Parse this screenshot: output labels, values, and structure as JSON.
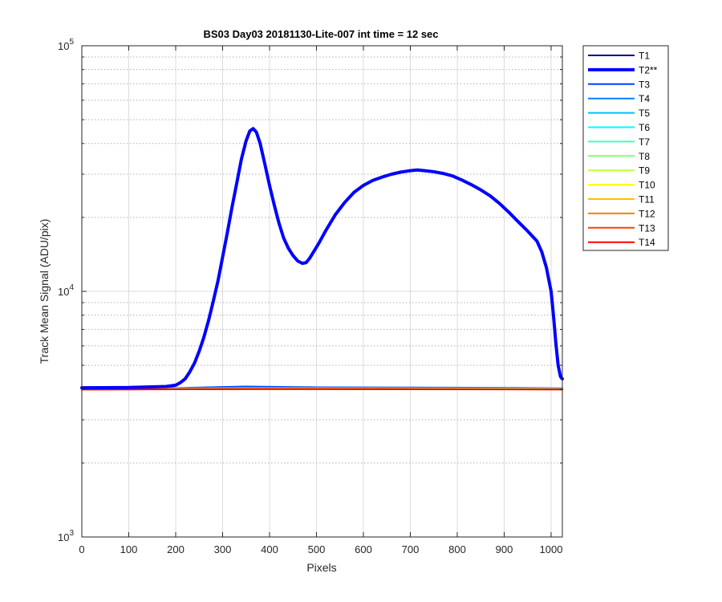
{
  "chart_data": {
    "type": "line",
    "title": "BS03 Day03 20181130-Lite-007 int time = 12 sec",
    "xlabel": "Pixels",
    "ylabel": "Track Mean Signal (ADU/pix)",
    "xlim": [
      0,
      1024
    ],
    "ylim": [
      1000,
      100000
    ],
    "yscale": "log",
    "xticks": [
      0,
      100,
      200,
      300,
      400,
      500,
      600,
      700,
      800,
      900,
      1000
    ],
    "xtick_labels": [
      "0",
      "100",
      "200",
      "300",
      "400",
      "500",
      "600",
      "700",
      "800",
      "900",
      "1000"
    ],
    "ytick_labels": [
      {
        "value": 1000,
        "base": "10",
        "exp": "3"
      },
      {
        "value": 10000,
        "base": "10",
        "exp": "4"
      },
      {
        "value": 100000,
        "base": "10",
        "exp": "5"
      }
    ],
    "grid": true,
    "legend_position": "outside-right",
    "series": [
      {
        "name": "T1",
        "color": "#00008f",
        "width": 2,
        "x": [
          0,
          200,
          350,
          500,
          700,
          900,
          1024
        ],
        "y": [
          4000,
          4020,
          4080,
          4050,
          4040,
          4030,
          4020
        ]
      },
      {
        "name": "T2**",
        "color": "#0000ff",
        "width": 4,
        "x": [
          0,
          100,
          180,
          200,
          210,
          220,
          230,
          240,
          250,
          260,
          270,
          280,
          290,
          300,
          310,
          320,
          330,
          340,
          350,
          358,
          365,
          372,
          380,
          390,
          400,
          410,
          420,
          430,
          440,
          450,
          460,
          470,
          478,
          485,
          495,
          505,
          520,
          540,
          560,
          580,
          600,
          620,
          640,
          660,
          680,
          700,
          715,
          730,
          750,
          770,
          790,
          810,
          830,
          850,
          870,
          890,
          910,
          930,
          950,
          970,
          980,
          990,
          1000,
          1005,
          1010,
          1015,
          1020,
          1024
        ],
        "y": [
          4050,
          4060,
          4100,
          4150,
          4250,
          4400,
          4700,
          5100,
          5700,
          6500,
          7600,
          9100,
          11000,
          13800,
          17300,
          22000,
          27500,
          34500,
          41000,
          45000,
          46000,
          44500,
          40000,
          33000,
          27000,
          22500,
          19000,
          16500,
          15000,
          14000,
          13300,
          13000,
          13100,
          13600,
          14600,
          15700,
          17700,
          20500,
          23000,
          25300,
          27000,
          28300,
          29200,
          30000,
          30600,
          31000,
          31200,
          31000,
          30700,
          30200,
          29500,
          28400,
          27200,
          25900,
          24500,
          22800,
          21000,
          19200,
          17600,
          16000,
          14500,
          12500,
          10000,
          8000,
          6200,
          5000,
          4500,
          4400
        ]
      },
      {
        "name": "T3",
        "color": "#0040ff",
        "width": 2,
        "x": [
          0,
          200,
          350,
          500,
          700,
          900,
          1024
        ],
        "y": [
          4020,
          4040,
          4100,
          4070,
          4060,
          4050,
          4030
        ]
      },
      {
        "name": "T4",
        "color": "#0080ff",
        "width": 2,
        "x": [
          0,
          200,
          350,
          500,
          700,
          900,
          1024
        ],
        "y": [
          4010,
          4030,
          4060,
          4050,
          4045,
          4035,
          4020
        ]
      },
      {
        "name": "T5",
        "color": "#00bfff",
        "width": 2,
        "x": [
          0,
          200,
          350,
          500,
          700,
          900,
          1024
        ],
        "y": [
          4005,
          4020,
          4040,
          4035,
          4030,
          4025,
          4015
        ]
      },
      {
        "name": "T6",
        "color": "#00ffff",
        "width": 2,
        "x": [
          0,
          200,
          350,
          500,
          700,
          900,
          1024
        ],
        "y": [
          4000,
          4015,
          4030,
          4030,
          4025,
          4020,
          4010
        ]
      },
      {
        "name": "T7",
        "color": "#40ffbf",
        "width": 2,
        "x": [
          0,
          200,
          350,
          500,
          700,
          900,
          1024
        ],
        "y": [
          4000,
          4010,
          4025,
          4025,
          4020,
          4015,
          4010
        ]
      },
      {
        "name": "T8",
        "color": "#80ff80",
        "width": 2,
        "x": [
          0,
          200,
          350,
          500,
          700,
          900,
          1024
        ],
        "y": [
          3995,
          4005,
          4020,
          4020,
          4015,
          4010,
          4005
        ]
      },
      {
        "name": "T9",
        "color": "#bfff40",
        "width": 2,
        "x": [
          0,
          200,
          350,
          500,
          700,
          900,
          1024
        ],
        "y": [
          3995,
          4005,
          4015,
          4015,
          4010,
          4005,
          4000
        ]
      },
      {
        "name": "T10",
        "color": "#ffff00",
        "width": 2,
        "x": [
          0,
          200,
          350,
          500,
          700,
          900,
          1024
        ],
        "y": [
          3990,
          4000,
          4010,
          4010,
          4005,
          4000,
          3995
        ]
      },
      {
        "name": "T11",
        "color": "#ffbf00",
        "width": 2,
        "x": [
          0,
          200,
          350,
          500,
          700,
          900,
          1024
        ],
        "y": [
          3990,
          4000,
          4008,
          4008,
          4003,
          3998,
          3993
        ]
      },
      {
        "name": "T12",
        "color": "#ff8000",
        "width": 2,
        "x": [
          0,
          200,
          350,
          500,
          700,
          900,
          1024
        ],
        "y": [
          3988,
          3998,
          4005,
          4005,
          4000,
          3995,
          3990
        ]
      },
      {
        "name": "T13",
        "color": "#ff4000",
        "width": 2,
        "x": [
          0,
          200,
          350,
          500,
          700,
          900,
          1024
        ],
        "y": [
          3985,
          3995,
          4003,
          4003,
          3998,
          3993,
          3988
        ]
      },
      {
        "name": "T14",
        "color": "#ff0000",
        "width": 2,
        "x": [
          0,
          200,
          350,
          500,
          700,
          900,
          1024
        ],
        "y": [
          3985,
          3993,
          4000,
          4000,
          3995,
          3990,
          3985
        ]
      }
    ]
  }
}
